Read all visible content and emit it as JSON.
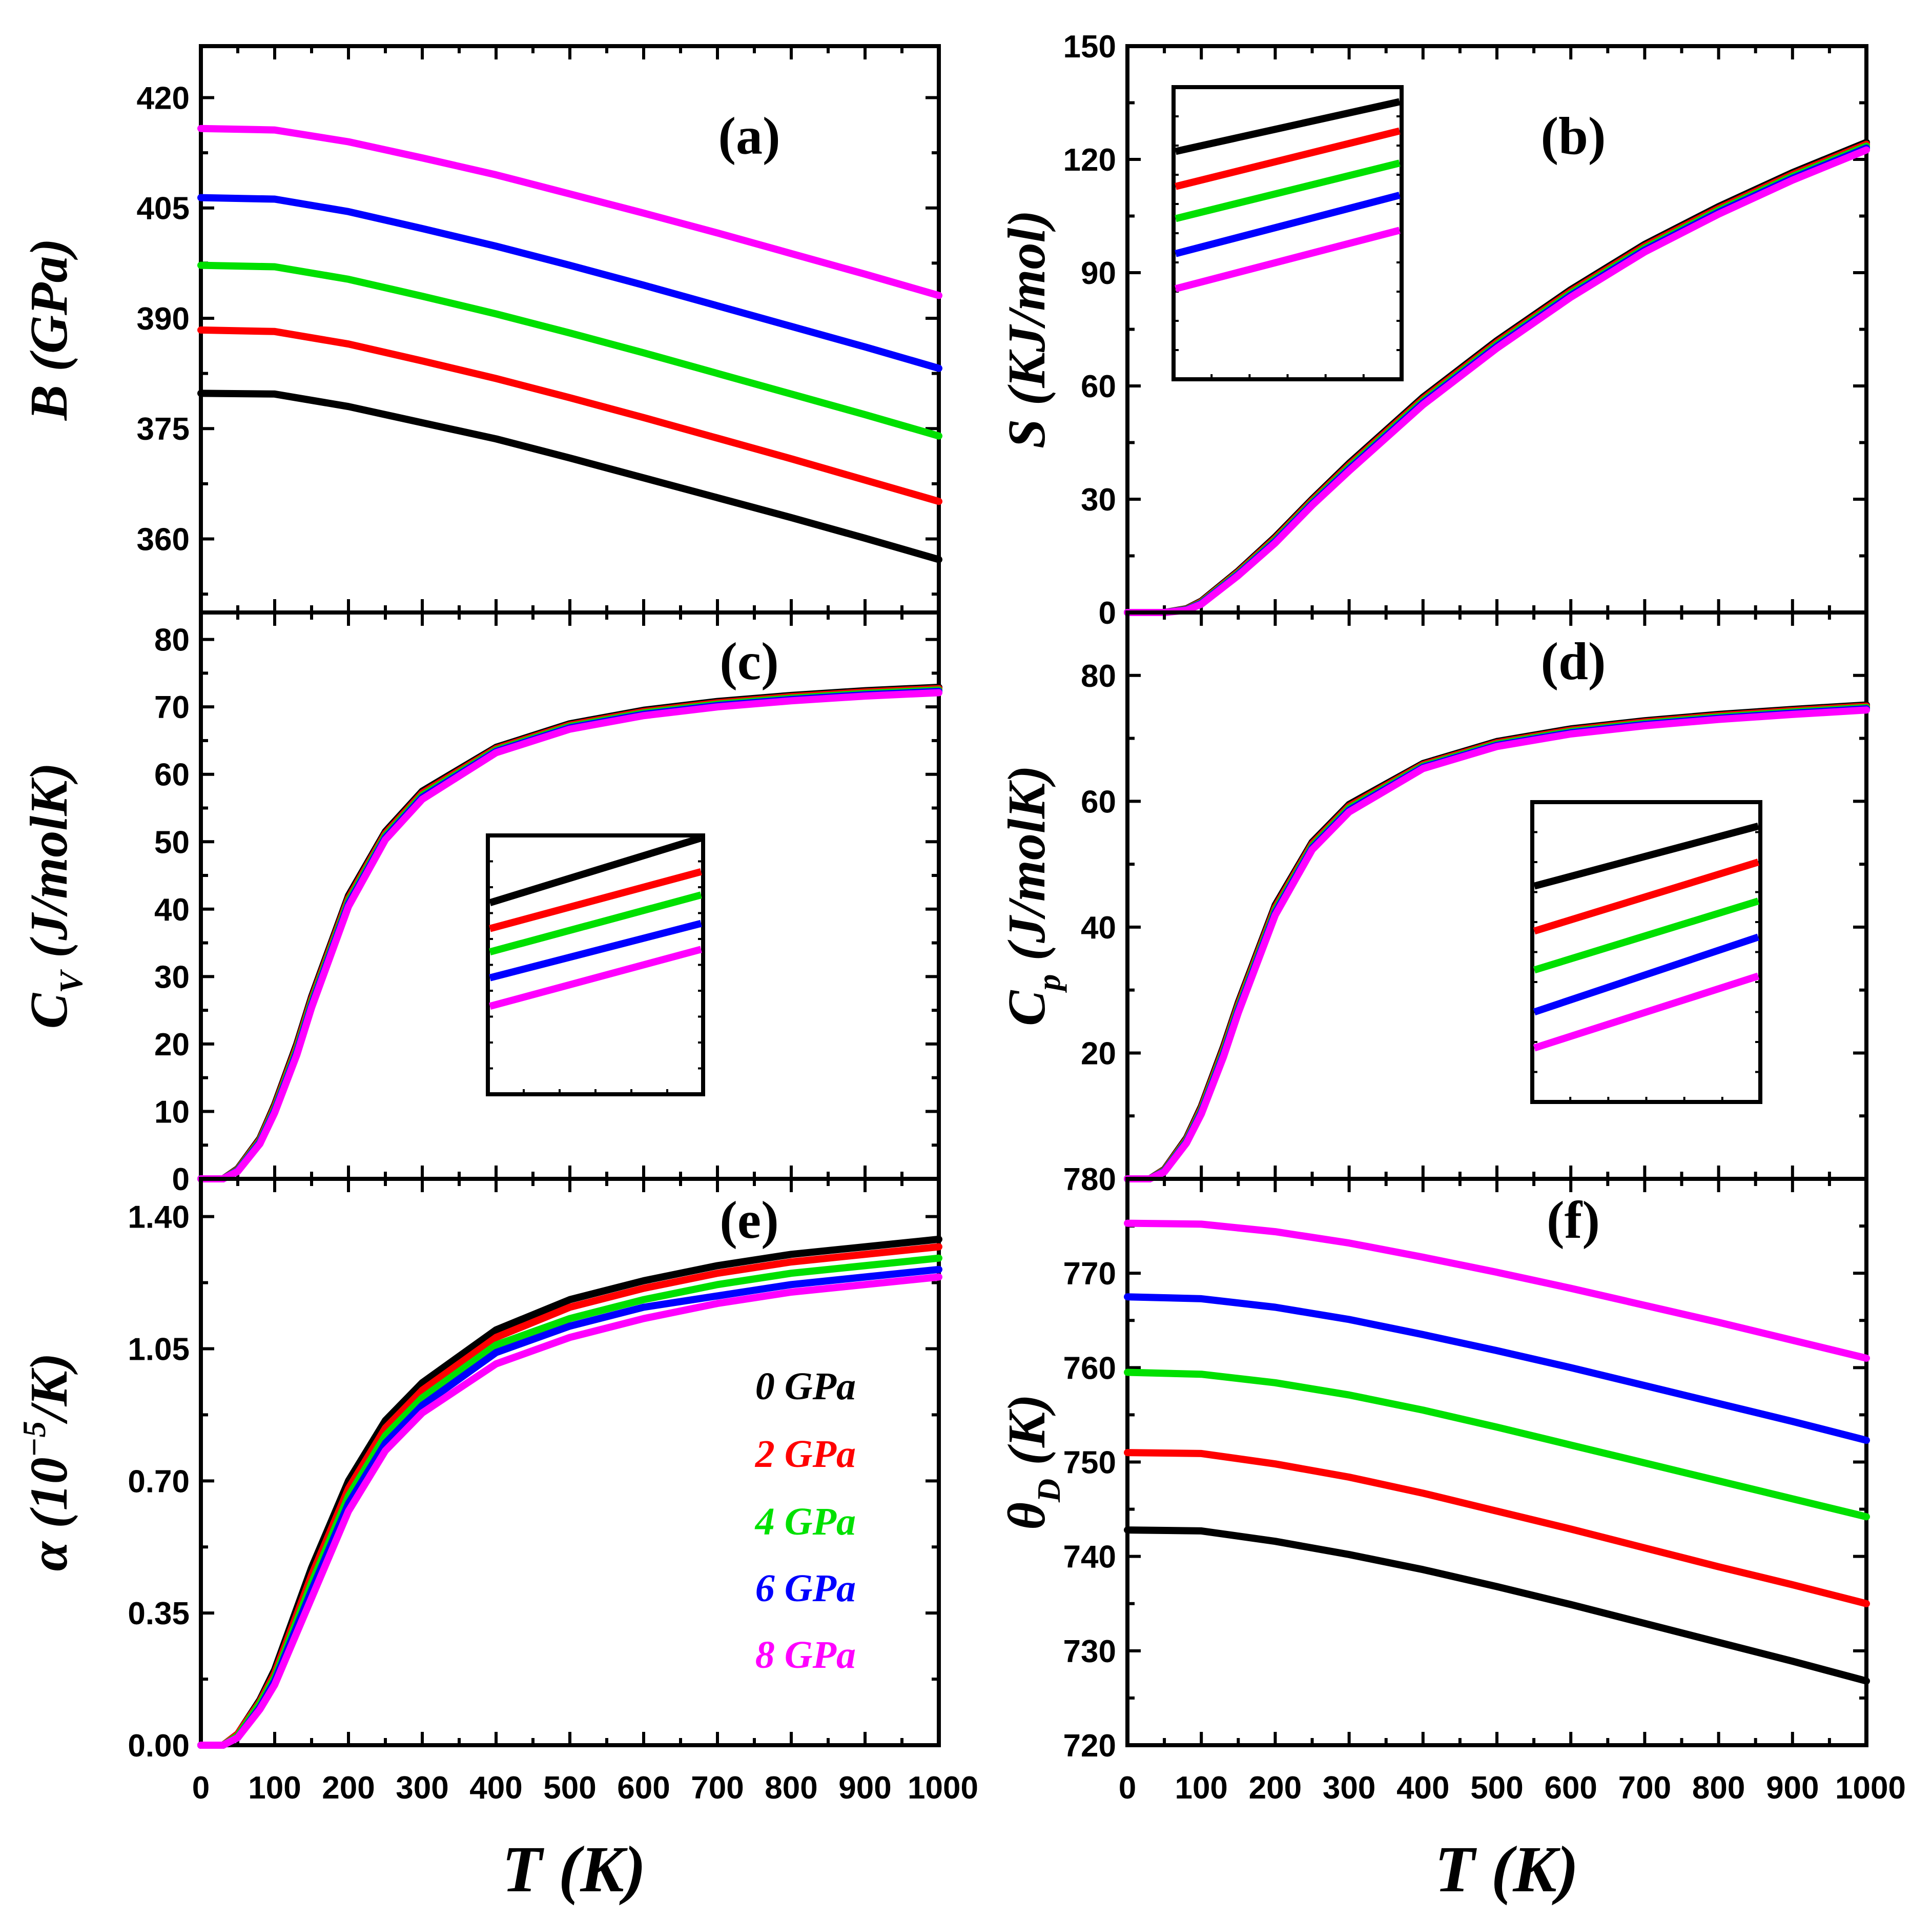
{
  "colors": {
    "0 GPa": "#000000",
    "2 GPa": "#ff0000",
    "4 GPa": "#00e000",
    "6 GPa": "#0000ff",
    "8 GPa": "#ff00ff"
  },
  "legend": [
    "0 GPa",
    "2 GPa",
    "4 GPa",
    "6 GPa",
    "8 GPa"
  ],
  "x_axis": {
    "label": "T (K)",
    "ticks": [
      "0",
      "100",
      "200",
      "300",
      "400",
      "500",
      "600",
      "700",
      "800",
      "900",
      "1000"
    ]
  },
  "chart_data": [
    {
      "id": "a",
      "panel_label": "(a)",
      "type": "line",
      "ylabel": "B (GPa)",
      "xlabel": "T (K)",
      "xlim": [
        0,
        1000
      ],
      "ylim": [
        350,
        427
      ],
      "yticks": [
        360,
        375,
        390,
        405,
        420
      ],
      "ytick_labels": [
        "360",
        "375",
        "390",
        "405",
        "420"
      ],
      "x": [
        0,
        100,
        200,
        300,
        400,
        500,
        600,
        700,
        800,
        900,
        1000
      ],
      "series": [
        {
          "name": "0 GPa",
          "values": [
            379.8,
            379.7,
            378.0,
            375.8,
            373.6,
            371.0,
            368.3,
            365.6,
            362.9,
            360.1,
            357.2
          ]
        },
        {
          "name": "2 GPa",
          "values": [
            388.4,
            388.2,
            386.5,
            384.2,
            381.8,
            379.2,
            376.5,
            373.7,
            370.9,
            368.0,
            365.1
          ]
        },
        {
          "name": "4 GPa",
          "values": [
            397.2,
            397.0,
            395.3,
            393.0,
            390.6,
            388.0,
            385.3,
            382.5,
            379.7,
            376.9,
            374.0
          ]
        },
        {
          "name": "6 GPa",
          "values": [
            406.4,
            406.2,
            404.5,
            402.2,
            399.8,
            397.2,
            394.5,
            391.7,
            388.9,
            386.1,
            383.2
          ]
        },
        {
          "name": "8 GPa",
          "values": [
            415.8,
            415.6,
            414.0,
            411.8,
            409.5,
            406.9,
            404.3,
            401.6,
            398.8,
            396.0,
            393.1
          ]
        }
      ]
    },
    {
      "id": "b",
      "panel_label": "(b)",
      "type": "line",
      "ylabel": "S (KJ/mol)",
      "xlabel": "T (K)",
      "xlim": [
        0,
        1000
      ],
      "ylim": [
        0,
        150
      ],
      "yticks": [
        0,
        30,
        60,
        90,
        120,
        150
      ],
      "ytick_labels": [
        "0",
        "30",
        "60",
        "90",
        "120",
        "150"
      ],
      "x": [
        0,
        50,
        80,
        100,
        150,
        200,
        250,
        300,
        400,
        500,
        600,
        700,
        800,
        900,
        1000
      ],
      "series": [
        {
          "name": "0 GPa",
          "values": [
            0,
            0,
            1.0,
            3.0,
            11.0,
            20.0,
            30.0,
            39.5,
            57.0,
            72.0,
            85.5,
            97.5,
            107.5,
            116.5,
            124.5
          ]
        },
        {
          "name": "2 GPa",
          "values": [
            0,
            0,
            0.9,
            2.8,
            10.7,
            19.6,
            29.6,
            39.0,
            56.5,
            71.5,
            85.0,
            97.0,
            107.0,
            116.0,
            124.0
          ]
        },
        {
          "name": "4 GPa",
          "values": [
            0,
            0,
            0.8,
            2.6,
            10.4,
            19.2,
            29.2,
            38.5,
            56.0,
            71.0,
            84.5,
            96.5,
            106.5,
            115.5,
            123.5
          ]
        },
        {
          "name": "6 GPa",
          "values": [
            0,
            0,
            0.7,
            2.4,
            10.1,
            18.8,
            28.8,
            38.0,
            55.5,
            70.5,
            84.0,
            96.0,
            106.0,
            115.0,
            123.0
          ]
        },
        {
          "name": "8 GPa",
          "values": [
            0,
            0,
            0.6,
            2.2,
            9.8,
            18.4,
            28.4,
            37.5,
            55.0,
            70.0,
            83.5,
            95.5,
            105.5,
            114.5,
            122.5
          ]
        }
      ],
      "inset": {
        "location": "upper-left",
        "description": "zoom"
      }
    },
    {
      "id": "c",
      "panel_label": "(c)",
      "type": "line",
      "ylabel_main": "C",
      "ylabel_sub": "V",
      "ylabel_rest": " (J/molK)",
      "xlabel": "T (K)",
      "xlim": [
        0,
        1000
      ],
      "ylim": [
        0,
        84
      ],
      "yticks": [
        0,
        10,
        20,
        30,
        40,
        50,
        60,
        70,
        80
      ],
      "ytick_labels": [
        "0",
        "10",
        "20",
        "30",
        "40",
        "50",
        "60",
        "70",
        "80"
      ],
      "x": [
        0,
        30,
        50,
        80,
        100,
        130,
        150,
        200,
        250,
        300,
        400,
        500,
        600,
        700,
        800,
        900,
        1000
      ],
      "series": [
        {
          "name": "0 GPa",
          "values": [
            0,
            0,
            1.5,
            6.0,
            11.0,
            20.0,
            27.0,
            42.0,
            51.5,
            57.5,
            64.0,
            67.5,
            69.5,
            70.8,
            71.7,
            72.4,
            72.9
          ]
        },
        {
          "name": "2 GPa",
          "values": [
            0,
            0,
            1.4,
            5.8,
            10.7,
            19.6,
            26.6,
            41.6,
            51.2,
            57.2,
            63.8,
            67.3,
            69.3,
            70.6,
            71.5,
            72.2,
            72.7
          ]
        },
        {
          "name": "4 GPa",
          "values": [
            0,
            0,
            1.3,
            5.6,
            10.4,
            19.2,
            26.2,
            41.2,
            50.9,
            56.9,
            63.6,
            67.1,
            69.1,
            70.4,
            71.3,
            72.0,
            72.5
          ]
        },
        {
          "name": "6 GPa",
          "values": [
            0,
            0,
            1.2,
            5.4,
            10.1,
            18.8,
            25.8,
            40.8,
            50.6,
            56.6,
            63.4,
            66.9,
            68.9,
            70.2,
            71.1,
            71.8,
            72.3
          ]
        },
        {
          "name": "8 GPa",
          "values": [
            0,
            0,
            1.1,
            5.2,
            9.8,
            18.4,
            25.4,
            40.4,
            50.3,
            56.3,
            63.2,
            66.7,
            68.7,
            70.0,
            70.9,
            71.6,
            72.1
          ]
        }
      ],
      "inset": {
        "location": "center",
        "description": "zoom"
      }
    },
    {
      "id": "d",
      "panel_label": "(d)",
      "type": "line",
      "ylabel_main": "C",
      "ylabel_sub": "p",
      "ylabel_rest": " (J/molK)",
      "xlabel": "T (K)",
      "xlim": [
        0,
        1000
      ],
      "ylim": [
        0,
        90
      ],
      "yticks": [
        20,
        40,
        60,
        80
      ],
      "ytick_labels": [
        "20",
        "40",
        "60",
        "80"
      ],
      "x": [
        0,
        30,
        50,
        80,
        100,
        130,
        150,
        200,
        250,
        300,
        400,
        500,
        600,
        700,
        800,
        900,
        1000
      ],
      "series": [
        {
          "name": "0 GPa",
          "values": [
            0,
            0,
            1.5,
            6.5,
            11.5,
            21.0,
            28.0,
            43.5,
            53.5,
            59.5,
            66.0,
            69.5,
            71.5,
            72.8,
            73.8,
            74.6,
            75.3
          ]
        },
        {
          "name": "2 GPa",
          "values": [
            0,
            0,
            1.4,
            6.3,
            11.2,
            20.6,
            27.6,
            43.1,
            53.2,
            59.2,
            65.8,
            69.3,
            71.3,
            72.6,
            73.6,
            74.4,
            75.1
          ]
        },
        {
          "name": "4 GPa",
          "values": [
            0,
            0,
            1.3,
            6.1,
            10.9,
            20.2,
            27.2,
            42.7,
            52.9,
            58.9,
            65.6,
            69.1,
            71.1,
            72.4,
            73.4,
            74.2,
            74.9
          ]
        },
        {
          "name": "6 GPa",
          "values": [
            0,
            0,
            1.2,
            5.9,
            10.6,
            19.8,
            26.8,
            42.3,
            52.6,
            58.6,
            65.4,
            68.9,
            70.9,
            72.2,
            73.2,
            74.0,
            74.7
          ]
        },
        {
          "name": "8 GPa",
          "values": [
            0,
            0,
            1.1,
            5.7,
            10.3,
            19.4,
            26.4,
            41.9,
            52.3,
            58.3,
            65.2,
            68.7,
            70.7,
            72.0,
            73.0,
            73.8,
            74.5
          ]
        }
      ],
      "inset": {
        "location": "lower-right",
        "description": "zoom"
      }
    },
    {
      "id": "e",
      "panel_label": "(e)",
      "type": "line",
      "ylabel_main": "α (10",
      "ylabel_sup": "−5",
      "ylabel_rest": "/K)",
      "xlabel": "T (K)",
      "xlim": [
        0,
        1000
      ],
      "ylim": [
        0,
        1.5
      ],
      "yticks": [
        0,
        0.35,
        0.7,
        1.05,
        1.4
      ],
      "ytick_labels": [
        "0.00",
        "0.35",
        "0.70",
        "1.05",
        "1.40"
      ],
      "x": [
        0,
        30,
        50,
        80,
        100,
        150,
        200,
        250,
        300,
        400,
        500,
        600,
        700,
        800,
        900,
        1000
      ],
      "series": [
        {
          "name": "0 GPa",
          "values": [
            0,
            0,
            0.03,
            0.12,
            0.2,
            0.47,
            0.7,
            0.86,
            0.96,
            1.1,
            1.18,
            1.23,
            1.27,
            1.3,
            1.32,
            1.34
          ]
        },
        {
          "name": "2 GPa",
          "values": [
            0,
            0,
            0.03,
            0.115,
            0.19,
            0.45,
            0.68,
            0.84,
            0.94,
            1.08,
            1.16,
            1.21,
            1.25,
            1.28,
            1.3,
            1.32
          ]
        },
        {
          "name": "4 GPa",
          "values": [
            0,
            0,
            0.025,
            0.11,
            0.18,
            0.43,
            0.66,
            0.82,
            0.92,
            1.06,
            1.13,
            1.18,
            1.22,
            1.25,
            1.27,
            1.29
          ]
        },
        {
          "name": "6 GPa",
          "values": [
            0,
            0,
            0.02,
            0.1,
            0.17,
            0.41,
            0.64,
            0.8,
            0.9,
            1.04,
            1.11,
            1.16,
            1.19,
            1.22,
            1.24,
            1.26
          ]
        },
        {
          "name": "8 GPa",
          "values": [
            0,
            0,
            0.02,
            0.095,
            0.16,
            0.39,
            0.62,
            0.78,
            0.88,
            1.01,
            1.08,
            1.13,
            1.17,
            1.2,
            1.22,
            1.24
          ]
        }
      ]
    },
    {
      "id": "f",
      "panel_label": "(f)",
      "type": "line",
      "ylabel_main": "θ",
      "ylabel_sub": "D",
      "ylabel_rest": " (K)",
      "xlabel": "T (K)",
      "xlim": [
        0,
        1000
      ],
      "ylim": [
        720,
        780
      ],
      "yticks": [
        720,
        730,
        740,
        750,
        760,
        770,
        780
      ],
      "ytick_labels": [
        "720",
        "730",
        "740",
        "750",
        "760",
        "770",
        "780"
      ],
      "x": [
        0,
        100,
        200,
        300,
        400,
        500,
        600,
        700,
        800,
        900,
        1000
      ],
      "series": [
        {
          "name": "0 GPa",
          "values": [
            742.8,
            742.7,
            741.6,
            740.2,
            738.6,
            736.8,
            734.9,
            732.9,
            730.9,
            728.9,
            726.8
          ]
        },
        {
          "name": "2 GPa",
          "values": [
            751.0,
            750.9,
            749.8,
            748.4,
            746.7,
            744.8,
            742.9,
            740.9,
            738.9,
            737.0,
            735.0
          ]
        },
        {
          "name": "4 GPa",
          "values": [
            759.5,
            759.3,
            758.4,
            757.1,
            755.5,
            753.7,
            751.8,
            749.9,
            748.0,
            746.1,
            744.2
          ]
        },
        {
          "name": "6 GPa",
          "values": [
            767.5,
            767.3,
            766.4,
            765.1,
            763.5,
            761.8,
            760.0,
            758.1,
            756.2,
            754.3,
            752.3
          ]
        },
        {
          "name": "8 GPa",
          "values": [
            775.3,
            775.2,
            774.4,
            773.2,
            771.7,
            770.1,
            768.4,
            766.6,
            764.8,
            762.9,
            761.0
          ]
        }
      ]
    }
  ]
}
